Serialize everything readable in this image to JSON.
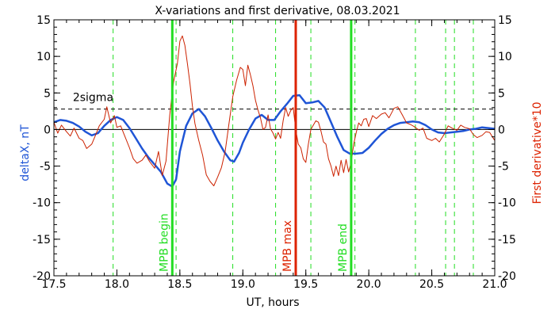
{
  "chart_data": {
    "type": "line",
    "title": "X-variations and first derivative, 08.03.2021",
    "xlabel": "UT, hours",
    "ylabel_left": "deltaX, nT",
    "ylabel_right": "First derivative*10",
    "xlim": [
      17.5,
      21.0
    ],
    "ylim_left": [
      -20,
      15
    ],
    "ylim_right": [
      -20,
      15
    ],
    "x_ticks": [
      "17.5",
      "18.0",
      "18.5",
      "19.0",
      "19.5",
      "20.0",
      "20.5",
      "21.0"
    ],
    "y_ticks_left": [
      "-20",
      "-15",
      "-10",
      "-5",
      "0",
      "5",
      "10",
      "15"
    ],
    "y_ticks_right": [
      "-20",
      "-15",
      "-10",
      "-5",
      "0",
      "5",
      "10",
      "15"
    ],
    "threshold": {
      "label": "2sigma",
      "value": 2.8
    },
    "zero_line": 0,
    "colors": {
      "deltaX": "#1f55d6",
      "derivative": "#cc2200",
      "green": "#22dd22",
      "red_marker": "#dd2200",
      "axis": "#000000"
    },
    "markers": [
      {
        "x": 18.44,
        "label": "MPB begin",
        "color": "green"
      },
      {
        "x": 19.42,
        "label": "MPB max",
        "color": "red"
      },
      {
        "x": 19.86,
        "label": "MPB end",
        "color": "green"
      }
    ],
    "dashed_lines": [
      17.97,
      18.47,
      18.92,
      19.26,
      19.54,
      19.89,
      20.37,
      20.61,
      20.68,
      20.83
    ],
    "series": [
      {
        "key": "deltaX",
        "x": [
          17.5,
          17.55,
          17.6,
          17.65,
          17.7,
          17.75,
          17.8,
          17.85,
          17.9,
          17.95,
          18.0,
          18.05,
          18.1,
          18.15,
          18.2,
          18.25,
          18.3,
          18.35,
          18.4,
          18.44,
          18.47,
          18.5,
          18.55,
          18.6,
          18.65,
          18.7,
          18.75,
          18.8,
          18.85,
          18.9,
          18.93,
          18.97,
          19.0,
          19.05,
          19.1,
          19.15,
          19.2,
          19.25,
          19.3,
          19.35,
          19.4,
          19.45,
          19.5,
          19.55,
          19.6,
          19.65,
          19.7,
          19.75,
          19.8,
          19.85,
          19.9,
          19.95,
          20.0,
          20.05,
          20.1,
          20.15,
          20.2,
          20.25,
          20.3,
          20.35,
          20.4,
          20.45,
          20.5,
          20.55,
          20.6,
          20.65,
          20.7,
          20.75,
          20.8,
          20.85,
          20.9,
          20.95,
          21.0
        ],
        "y": [
          1.0,
          1.3,
          1.2,
          0.9,
          0.4,
          -0.3,
          -0.8,
          -0.5,
          0.5,
          1.3,
          1.7,
          1.3,
          0.2,
          -1.2,
          -2.6,
          -3.8,
          -4.8,
          -5.8,
          -7.4,
          -7.8,
          -6.8,
          -3.0,
          0.5,
          2.2,
          2.8,
          1.8,
          0.2,
          -1.5,
          -3.0,
          -4.2,
          -4.4,
          -3.2,
          -1.8,
          0.0,
          1.5,
          2.0,
          1.3,
          1.3,
          2.5,
          3.5,
          4.6,
          4.7,
          3.6,
          3.7,
          3.9,
          3.0,
          1.0,
          -1.0,
          -2.8,
          -3.3,
          -3.3,
          -3.2,
          -2.5,
          -1.5,
          -0.6,
          0.1,
          0.6,
          0.9,
          1.0,
          1.1,
          1.0,
          0.6,
          0.0,
          -0.4,
          -0.5,
          -0.4,
          -0.3,
          -0.2,
          0.0,
          0.1,
          0.3,
          0.2,
          0.1
        ]
      },
      {
        "key": "derivative",
        "x": [
          17.5,
          17.53,
          17.56,
          17.6,
          17.63,
          17.66,
          17.7,
          17.73,
          17.76,
          17.8,
          17.83,
          17.86,
          17.9,
          17.92,
          17.95,
          17.98,
          18.0,
          18.03,
          18.06,
          18.1,
          18.13,
          18.16,
          18.2,
          18.23,
          18.26,
          18.3,
          18.33,
          18.36,
          18.39,
          18.42,
          18.45,
          18.48,
          18.5,
          18.52,
          18.54,
          18.56,
          18.58,
          18.6,
          18.62,
          18.65,
          18.68,
          18.71,
          18.74,
          18.77,
          18.8,
          18.83,
          18.86,
          18.89,
          18.92,
          18.95,
          18.98,
          19.0,
          19.02,
          19.04,
          19.06,
          19.08,
          19.1,
          19.12,
          19.14,
          19.16,
          19.18,
          19.2,
          19.22,
          19.24,
          19.26,
          19.28,
          19.3,
          19.32,
          19.34,
          19.36,
          19.38,
          19.4,
          19.42,
          19.44,
          19.46,
          19.48,
          19.5,
          19.52,
          19.54,
          19.56,
          19.58,
          19.6,
          19.62,
          19.64,
          19.66,
          19.68,
          19.7,
          19.72,
          19.74,
          19.76,
          19.78,
          19.8,
          19.82,
          19.84,
          19.86,
          19.88,
          19.9,
          19.92,
          19.94,
          19.96,
          19.98,
          20.0,
          20.03,
          20.06,
          20.1,
          20.13,
          20.16,
          20.2,
          20.23,
          20.26,
          20.3,
          20.33,
          20.36,
          20.4,
          20.43,
          20.46,
          20.5,
          20.53,
          20.56,
          20.6,
          20.63,
          20.66,
          20.7,
          20.73,
          20.76,
          20.8,
          20.83,
          20.86,
          20.9,
          20.93,
          20.96,
          21.0
        ],
        "y": [
          1.0,
          -0.5,
          0.6,
          -0.3,
          -0.9,
          0.2,
          -1.2,
          -1.5,
          -2.6,
          -2.0,
          -0.8,
          0.5,
          1.4,
          3.1,
          0.9,
          1.9,
          0.3,
          0.5,
          -0.8,
          -2.5,
          -4.0,
          -4.6,
          -4.2,
          -3.5,
          -4.4,
          -5.3,
          -3.0,
          -6.3,
          -4.3,
          2.0,
          6.5,
          9.0,
          12.1,
          12.8,
          11.5,
          9.0,
          6.3,
          3.2,
          0.8,
          -1.5,
          -3.5,
          -6.2,
          -7.1,
          -7.7,
          -6.5,
          -5.2,
          -3.0,
          0.8,
          4.5,
          6.7,
          8.5,
          8.2,
          6.0,
          8.8,
          7.5,
          6.0,
          4.0,
          2.7,
          1.6,
          0.0,
          0.3,
          2.0,
          0.1,
          -0.5,
          -1.3,
          -0.4,
          -1.2,
          1.2,
          3.0,
          1.8,
          2.6,
          3.0,
          0.0,
          -2.0,
          -2.5,
          -4.0,
          -4.5,
          -2.0,
          0.0,
          0.6,
          1.2,
          1.0,
          -0.2,
          -1.7,
          -2.0,
          -4.0,
          -5.0,
          -6.4,
          -5.0,
          -6.3,
          -4.2,
          -5.9,
          -4.1,
          -5.8,
          -4.5,
          -2.0,
          -0.4,
          0.9,
          0.5,
          1.4,
          1.5,
          0.4,
          1.9,
          1.5,
          2.1,
          2.3,
          1.6,
          2.9,
          3.1,
          2.2,
          0.9,
          0.7,
          0.4,
          -0.1,
          0.2,
          -1.2,
          -1.5,
          -1.2,
          -1.7,
          -0.6,
          0.5,
          0.2,
          -0.1,
          0.6,
          0.3,
          0.1,
          -0.7,
          -1.1,
          -0.8,
          -0.3,
          -0.4,
          -1.5
        ]
      }
    ]
  }
}
